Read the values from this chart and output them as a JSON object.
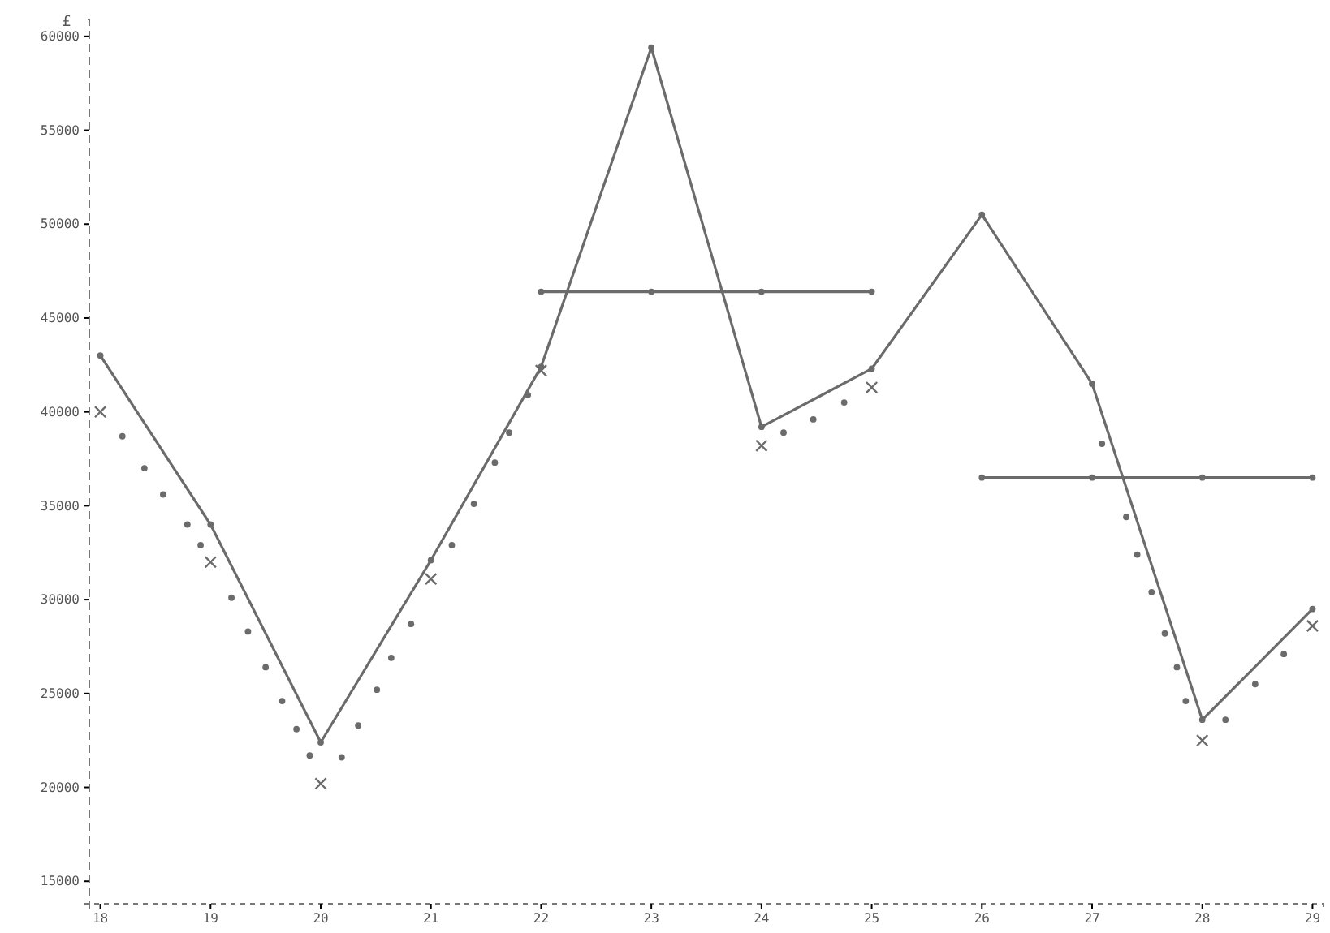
{
  "chart_data": {
    "type": "line",
    "ylabel": "£",
    "xlim": [
      17.9,
      29.1
    ],
    "ylim": [
      13800,
      60900
    ],
    "xticks": [
      18,
      19,
      20,
      21,
      22,
      23,
      24,
      25,
      26,
      27,
      28,
      29
    ],
    "yticks": [
      15000,
      20000,
      25000,
      30000,
      35000,
      40000,
      45000,
      50000,
      55000,
      60000
    ],
    "series": [
      {
        "color": "#6b6b6b",
        "marker": "circle",
        "line_style": "solid",
        "x": [
          18,
          19,
          20,
          21,
          22,
          23,
          24,
          25,
          26,
          27,
          28,
          29
        ],
        "values": [
          43000,
          34000,
          22400,
          32100,
          42400,
          59400,
          39200,
          42300,
          50500,
          41500,
          23600,
          29500
        ]
      },
      {
        "color": "#6b6b6b",
        "marker": "circle",
        "line_style": "solid",
        "x": [
          22,
          23,
          24,
          25
        ],
        "values": [
          46400,
          46400,
          46400,
          46400
        ]
      },
      {
        "color": "#6b6b6b",
        "marker": "circle",
        "line_style": "solid",
        "x": [
          26,
          27,
          28,
          29
        ],
        "values": [
          36500,
          36500,
          36500,
          36500
        ]
      },
      {
        "type": "scatter",
        "color": "#6b6b6b",
        "marker": "cross",
        "x": [
          18,
          19,
          20,
          21,
          22,
          24,
          25,
          28,
          29
        ],
        "values": [
          40000,
          32000,
          20200,
          31100,
          42200,
          38200,
          41300,
          22500,
          28600
        ]
      },
      {
        "type": "scatter",
        "color": "#6b6b6b",
        "marker": "circle",
        "x": [
          18.2,
          18.4,
          18.57,
          18.79,
          18.91,
          19.19,
          19.34,
          19.5,
          19.65,
          19.78,
          19.9,
          20.19,
          20.34,
          20.51,
          20.64,
          20.82,
          21.19,
          21.39,
          21.58,
          21.71,
          21.88,
          24.2,
          24.47,
          24.75,
          27.09,
          27.31,
          27.41,
          27.54,
          27.66,
          27.77,
          27.85,
          28.21,
          28.48,
          28.74
        ],
        "values": [
          38700,
          37000,
          35600,
          34000,
          32900,
          30100,
          28300,
          26400,
          24600,
          23100,
          21700,
          21600,
          23300,
          25200,
          26900,
          28700,
          32900,
          35100,
          37300,
          38900,
          40900,
          38900,
          39600,
          40500,
          38300,
          34400,
          32400,
          30400,
          28200,
          26400,
          24600,
          23600,
          25500,
          27100
        ]
      }
    ]
  }
}
